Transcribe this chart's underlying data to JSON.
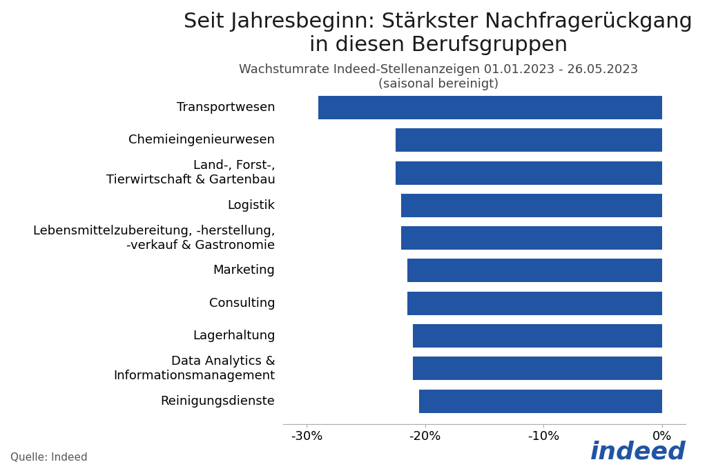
{
  "title": "Seit Jahresbeginn: Stärkster Nachfragerückgang\nin diesen Berufsgruppen",
  "subtitle": "Wachstumrate Indeed-Stellenanzeigen 01.01.2023 - 26.05.2023\n(saisonal bereinigt)",
  "categories": [
    "Transportwesen",
    "Chemieingenieurwesen",
    "Land-, Forst-,\nTierwirtschaft & Gartenbau",
    "Logistik",
    "Lebensmittelzubereitung, -herstellung,\n-verkauf & Gastronomie",
    "Marketing",
    "Consulting",
    "Lagerhaltung",
    "Data Analytics &\nInformationsmanagement",
    "Reinigungsdienste"
  ],
  "values": [
    -29.0,
    -22.5,
    -22.5,
    -22.0,
    -22.0,
    -21.5,
    -21.5,
    -21.0,
    -21.0,
    -20.5
  ],
  "bar_color": "#2155A3",
  "background_color": "#ffffff",
  "xlim": [
    -32,
    2
  ],
  "xticks": [
    -30,
    -20,
    -10,
    0
  ],
  "source_text": "Quelle: Indeed",
  "title_fontsize": 22,
  "subtitle_fontsize": 13,
  "tick_fontsize": 13,
  "label_fontsize": 13,
  "source_fontsize": 11
}
